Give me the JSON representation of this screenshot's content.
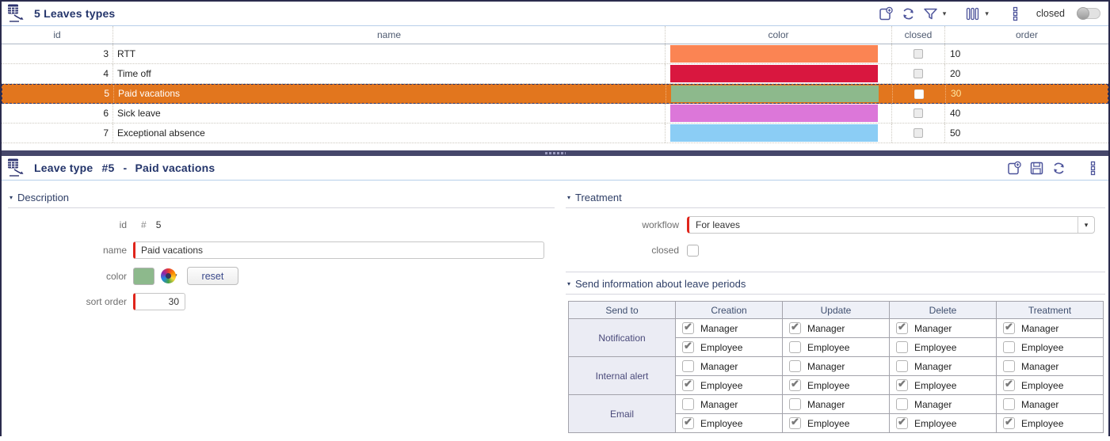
{
  "accent": {
    "selected_row": "#e2761e",
    "required_red": "#e0251b",
    "title_navy": "#24356b",
    "splitter": "#46476b"
  },
  "icons": {
    "app": "leave-type-icon",
    "list_toolbar": [
      "new-record-icon",
      "refresh-icon",
      "filter-icon",
      "columns-icon",
      "more-icon"
    ],
    "form_toolbar": [
      "new-record-icon",
      "save-icon",
      "refresh-icon",
      "more-icon"
    ]
  },
  "list_panel": {
    "title": "5 Leaves types",
    "closed_filter_label": "closed",
    "columns": [
      "id",
      "name",
      "color",
      "closed",
      "order"
    ],
    "rows": [
      {
        "id": "3",
        "name": "RTT",
        "color": "#fb8453",
        "closed": false,
        "order": "10",
        "selected": false
      },
      {
        "id": "4",
        "name": "Time off",
        "color": "#d9173f",
        "closed": false,
        "order": "20",
        "selected": false
      },
      {
        "id": "5",
        "name": "Paid vacations",
        "color": "#8db98c",
        "closed": false,
        "order": "30",
        "selected": true
      },
      {
        "id": "6",
        "name": "Sick leave",
        "color": "#dc77d9",
        "closed": false,
        "order": "40",
        "selected": false
      },
      {
        "id": "7",
        "name": "Exceptional absence",
        "color": "#8bcdf5",
        "closed": false,
        "order": "50",
        "selected": false
      }
    ]
  },
  "detail_panel": {
    "title_label": "Leave type",
    "record_id": "#5",
    "title_sep": "-",
    "record_name": "Paid vacations",
    "description": {
      "title": "Description",
      "id_label": "id",
      "id_prefix": "#",
      "id_value": "5",
      "name_label": "name",
      "name_value": "Paid vacations",
      "color_label": "color",
      "color_value": "#8db98c",
      "reset_label": "reset",
      "sort_label": "sort order",
      "sort_value": "30"
    },
    "treatment": {
      "title": "Treatment",
      "workflow_label": "workflow",
      "workflow_value": "For leaves",
      "closed_label": "closed",
      "closed_checked": false
    },
    "send_info": {
      "title": "Send information about leave periods",
      "columns": [
        "Send to",
        "Creation",
        "Update",
        "Delete",
        "Treatment"
      ],
      "groups": [
        {
          "label": "Notification",
          "rows": [
            {
              "role": "Manager",
              "values": [
                true,
                true,
                true,
                true
              ]
            },
            {
              "role": "Employee",
              "values": [
                true,
                false,
                false,
                false
              ]
            }
          ]
        },
        {
          "label": "Internal alert",
          "rows": [
            {
              "role": "Manager",
              "values": [
                false,
                false,
                false,
                false
              ]
            },
            {
              "role": "Employee",
              "values": [
                true,
                true,
                true,
                true
              ]
            }
          ]
        },
        {
          "label": "Email",
          "rows": [
            {
              "role": "Manager",
              "values": [
                false,
                false,
                false,
                false
              ]
            },
            {
              "role": "Employee",
              "values": [
                true,
                true,
                true,
                true
              ]
            }
          ]
        }
      ]
    }
  }
}
